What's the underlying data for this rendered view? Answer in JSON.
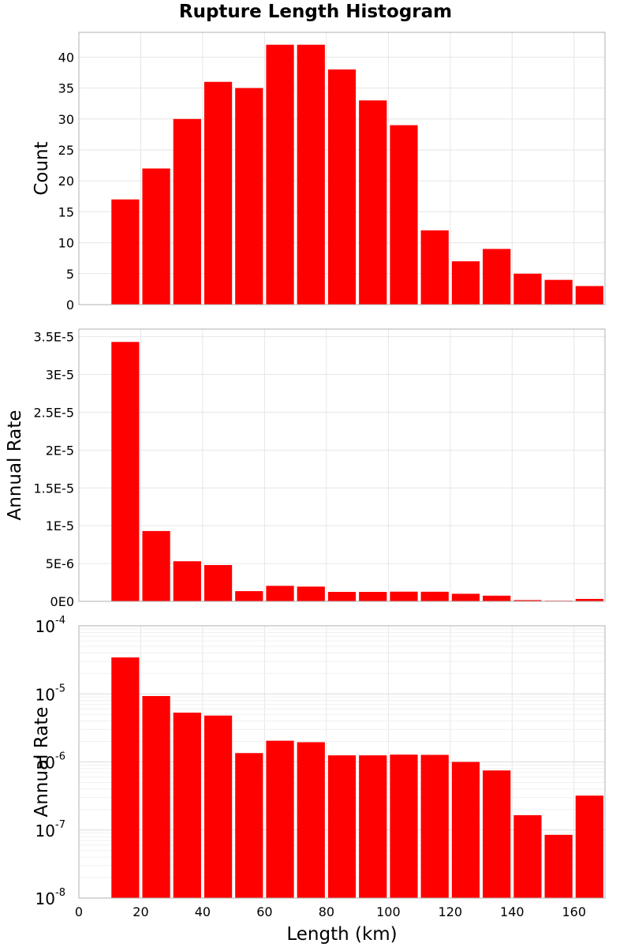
{
  "chart_data": [
    {
      "type": "bar",
      "title": "Rupture Length Histogram",
      "ylabel": "Count",
      "xlabel": "",
      "bin_width": 10,
      "x": [
        15,
        25,
        35,
        45,
        55,
        65,
        75,
        85,
        95,
        105,
        115,
        125,
        135,
        145,
        155,
        165
      ],
      "values": [
        17,
        22,
        30,
        36,
        35,
        42,
        42,
        38,
        33,
        29,
        12,
        7,
        9,
        5,
        4,
        3
      ],
      "xlim": [
        0,
        170
      ],
      "ylim": [
        0,
        44
      ],
      "y_ticks": [
        0,
        5,
        10,
        15,
        20,
        25,
        30,
        35,
        40
      ],
      "y_tick_labels": [
        "0",
        "5",
        "10",
        "15",
        "20",
        "25",
        "30",
        "35",
        "40"
      ],
      "color": "#ff0000",
      "grid": true
    },
    {
      "type": "bar",
      "ylabel": "Annual Rate",
      "xlabel": "",
      "bin_width": 10,
      "x": [
        15,
        25,
        35,
        45,
        55,
        65,
        75,
        85,
        95,
        105,
        115,
        125,
        135,
        145,
        155,
        165
      ],
      "values": [
        3.43e-05,
        9.3e-06,
        5.3e-06,
        4.8e-06,
        1.35e-06,
        2.05e-06,
        1.95e-06,
        1.25e-06,
        1.25e-06,
        1.28e-06,
        1.27e-06,
        1e-06,
        7.5e-07,
        1.65e-07,
        8.5e-08,
        3.2e-07
      ],
      "xlim": [
        0,
        170
      ],
      "ylim": [
        0,
        3.6e-05
      ],
      "y_ticks": [
        0,
        5e-06,
        1e-05,
        1.5e-05,
        2e-05,
        2.5e-05,
        3e-05,
        3.5e-05
      ],
      "y_tick_labels": [
        "0E0",
        "5E-6",
        "1E-5",
        "1.5E-5",
        "2E-5",
        "2.5E-5",
        "3E-5",
        "3.5E-5"
      ],
      "color": "#ff0000",
      "grid": true
    },
    {
      "type": "bar",
      "ylabel": "Annual Rate",
      "xlabel": "Length (km)",
      "y_scale": "log",
      "bin_width": 10,
      "x": [
        15,
        25,
        35,
        45,
        55,
        65,
        75,
        85,
        95,
        105,
        115,
        125,
        135,
        145,
        155,
        165
      ],
      "values": [
        3.43e-05,
        9.3e-06,
        5.3e-06,
        4.8e-06,
        1.35e-06,
        2.05e-06,
        1.95e-06,
        1.25e-06,
        1.25e-06,
        1.28e-06,
        1.27e-06,
        1e-06,
        7.5e-07,
        1.65e-07,
        8.5e-08,
        3.2e-07
      ],
      "xlim": [
        0,
        170
      ],
      "ylim": [
        1e-08,
        0.0001
      ],
      "y_tick_exponents": [
        "-8",
        "-7",
        "-6",
        "-5",
        "-4"
      ],
      "y_tick_base": "10",
      "x_ticks": [
        0,
        20,
        40,
        60,
        80,
        100,
        120,
        140,
        160
      ],
      "x_tick_labels": [
        "0",
        "20",
        "40",
        "60",
        "80",
        "100",
        "120",
        "140",
        "160"
      ],
      "color": "#ff0000",
      "grid": true
    }
  ]
}
